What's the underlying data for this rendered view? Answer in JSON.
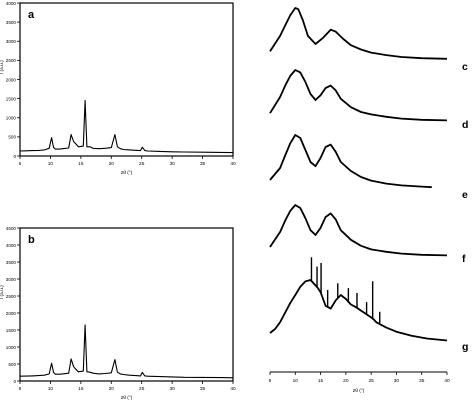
{
  "chart_data": [
    {
      "type": "line",
      "panel_label": "a",
      "xlabel": "2θ (°)",
      "ylabel": "I (a.u.)",
      "xlim": [
        5,
        40
      ],
      "ylim": [
        0,
        4000
      ],
      "x_ticks": [
        "5",
        "10",
        "15",
        "20",
        "25",
        "30",
        "35",
        "40"
      ],
      "y_ticks": [
        "0",
        "500",
        "1000",
        "1500",
        "2000",
        "2500",
        "3000",
        "3500",
        "4000"
      ],
      "series": [
        {
          "x": [
            5,
            6,
            7,
            8,
            9,
            9.8,
            10.2,
            10.5,
            10.8,
            11.5,
            12,
            13,
            13.4,
            13.8,
            14.1,
            14.6,
            15.4,
            15.7,
            16,
            16.5,
            17,
            18,
            19,
            20,
            20.6,
            21,
            21.5,
            22,
            23,
            24,
            24.8,
            25.1,
            25.5,
            26,
            28,
            30,
            32,
            35,
            38,
            40
          ],
          "y": [
            130,
            135,
            140,
            145,
            160,
            200,
            480,
            230,
            180,
            180,
            190,
            210,
            560,
            380,
            330,
            240,
            260,
            1450,
            240,
            240,
            200,
            190,
            200,
            220,
            560,
            240,
            190,
            170,
            160,
            150,
            140,
            230,
            140,
            130,
            120,
            110,
            105,
            100,
            95,
            90
          ]
        }
      ]
    },
    {
      "type": "line",
      "panel_label": "b",
      "xlabel": "2θ (°)",
      "ylabel": "I (a.u.)",
      "xlim": [
        5,
        40
      ],
      "ylim": [
        0,
        4500
      ],
      "x_ticks": [
        "5",
        "10",
        "15",
        "20",
        "25",
        "30",
        "35",
        "40"
      ],
      "y_ticks": [
        "0",
        "500",
        "1000",
        "1500",
        "2000",
        "2500",
        "3000",
        "3500",
        "4000",
        "4500"
      ],
      "series": [
        {
          "x": [
            5,
            6,
            7,
            8,
            9,
            9.8,
            10.2,
            10.5,
            10.8,
            11.5,
            12,
            13,
            13.4,
            13.8,
            14.1,
            14.6,
            15.4,
            15.7,
            16,
            16.5,
            17,
            18,
            19,
            20,
            20.6,
            21,
            21.5,
            22,
            23,
            24,
            24.8,
            25.1,
            25.5,
            26,
            28,
            30,
            32,
            35,
            38,
            40
          ],
          "y": [
            140,
            145,
            150,
            160,
            170,
            210,
            520,
            260,
            200,
            200,
            210,
            230,
            650,
            420,
            360,
            270,
            290,
            1650,
            270,
            260,
            230,
            210,
            220,
            240,
            630,
            260,
            210,
            190,
            170,
            160,
            150,
            250,
            150,
            140,
            130,
            120,
            110,
            105,
            100,
            95
          ]
        }
      ]
    },
    {
      "type": "line",
      "curves": [
        {
          "label": "c",
          "x": [
            5,
            7,
            8,
            9,
            10,
            10.6,
            11.5,
            12.5,
            14,
            15.5,
            17,
            18,
            19.5,
            21,
            23,
            25,
            28,
            31,
            35,
            40
          ],
          "y": [
            0.3,
            0.55,
            0.72,
            0.88,
            1.0,
            0.98,
            0.8,
            0.55,
            0.42,
            0.52,
            0.65,
            0.62,
            0.5,
            0.4,
            0.33,
            0.28,
            0.24,
            0.21,
            0.19,
            0.18
          ]
        },
        {
          "label": "d",
          "x": [
            5,
            7,
            8,
            9,
            10,
            11,
            12,
            13,
            14,
            15,
            16,
            17,
            18,
            19,
            21,
            23,
            25,
            28,
            31,
            35,
            40
          ],
          "y": [
            0.28,
            0.55,
            0.74,
            0.9,
            1.0,
            0.96,
            0.8,
            0.6,
            0.5,
            0.58,
            0.7,
            0.74,
            0.66,
            0.52,
            0.38,
            0.3,
            0.26,
            0.22,
            0.19,
            0.17,
            0.16
          ]
        },
        {
          "label": "e",
          "x": [
            5,
            7,
            8,
            9,
            10,
            11,
            12,
            13,
            14,
            15,
            16,
            17,
            18,
            19,
            21,
            23,
            25,
            28,
            31,
            35,
            37
          ],
          "y": [
            0.25,
            0.45,
            0.66,
            0.86,
            1.0,
            0.95,
            0.75,
            0.55,
            0.48,
            0.62,
            0.8,
            0.84,
            0.72,
            0.55,
            0.4,
            0.3,
            0.24,
            0.19,
            0.16,
            0.14,
            0.13
          ]
        },
        {
          "label": "f",
          "x": [
            5,
            7,
            8,
            9,
            10,
            11,
            12,
            13,
            14,
            15,
            16,
            17,
            18,
            19,
            21,
            23,
            25,
            28,
            31,
            35,
            40
          ],
          "y": [
            0.3,
            0.55,
            0.74,
            0.9,
            1.0,
            0.95,
            0.78,
            0.58,
            0.5,
            0.62,
            0.8,
            0.86,
            0.76,
            0.58,
            0.42,
            0.32,
            0.26,
            0.22,
            0.19,
            0.17,
            0.16
          ]
        },
        {
          "label": "g",
          "x": [
            5,
            6,
            7,
            8,
            9,
            10,
            11,
            12,
            13,
            14,
            14.5,
            15,
            15.5,
            16,
            17,
            18,
            19,
            20,
            21,
            22,
            23,
            24,
            25,
            25.5,
            26,
            27,
            28,
            30,
            33,
            36,
            40
          ],
          "y": [
            0.22,
            0.28,
            0.38,
            0.52,
            0.66,
            0.78,
            0.9,
            0.98,
            1.0,
            0.92,
            0.88,
            0.82,
            0.72,
            0.62,
            0.58,
            0.7,
            0.78,
            0.72,
            0.64,
            0.6,
            0.55,
            0.5,
            0.45,
            0.42,
            0.38,
            0.34,
            0.3,
            0.24,
            0.18,
            0.14,
            0.11
          ]
        }
      ],
      "spikes_g": [
        {
          "x": 13.2,
          "h": 0.35
        },
        {
          "x": 14.3,
          "h": 0.3
        },
        {
          "x": 15.1,
          "h": 0.45
        },
        {
          "x": 16.4,
          "h": 0.25
        },
        {
          "x": 18.4,
          "h": 0.22
        },
        {
          "x": 20.5,
          "h": 0.2
        },
        {
          "x": 22.2,
          "h": 0.22
        },
        {
          "x": 24.1,
          "h": 0.18
        },
        {
          "x": 25.3,
          "h": 0.55
        },
        {
          "x": 26.7,
          "h": 0.18
        }
      ],
      "xlabel": "2θ (°)",
      "xlim": [
        5,
        40
      ],
      "x_ticks": [
        "5",
        "10",
        "15",
        "20",
        "25",
        "30",
        "35",
        "40"
      ]
    }
  ]
}
